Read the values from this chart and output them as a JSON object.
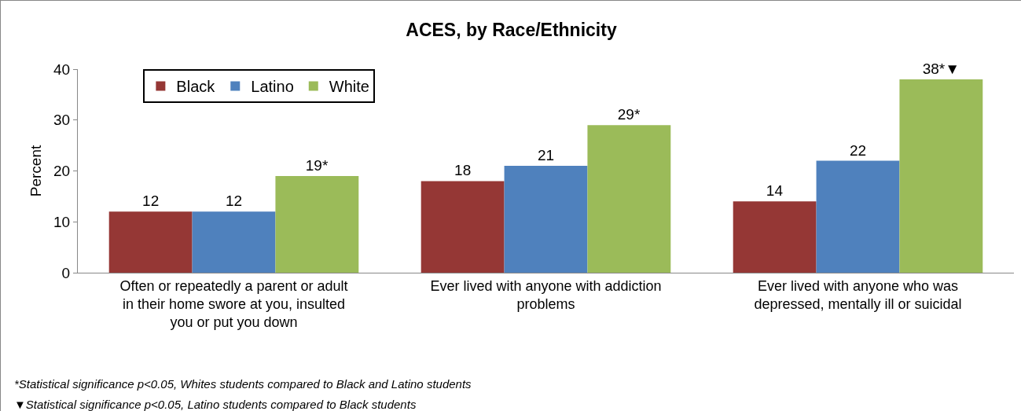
{
  "chart_data": {
    "type": "bar",
    "title": "ACES, by Race/Ethnicity",
    "ylabel": "Percent",
    "categories": [
      "Often or repeatedly a parent or adult in their home swore at you, insulted you or put you down",
      "Ever lived with anyone with addiction problems",
      "Ever lived with anyone who was depressed, mentally ill or suicidal"
    ],
    "series": [
      {
        "name": "Black",
        "color": "#953735",
        "values": [
          12,
          18,
          14
        ],
        "value_labels": [
          "12",
          "18",
          "14"
        ]
      },
      {
        "name": "Latino",
        "color": "#4f81bd",
        "values": [
          12,
          21,
          22
        ],
        "value_labels": [
          "12",
          "21",
          "22"
        ]
      },
      {
        "name": "White",
        "color": "#9bbb59",
        "values": [
          19,
          29,
          38
        ],
        "value_labels": [
          "19*",
          "29*",
          "38*▼"
        ]
      }
    ],
    "ylim": [
      0,
      40
    ],
    "yticks": [
      0,
      10,
      20,
      30,
      40
    ],
    "grid": false,
    "legend": "top left",
    "annotations": [
      "*Statistical significance p<0.05, Whites students compared to Black and Latino students",
      "▼Statistical significance p<0.05, Latino students compared to Black students"
    ]
  }
}
